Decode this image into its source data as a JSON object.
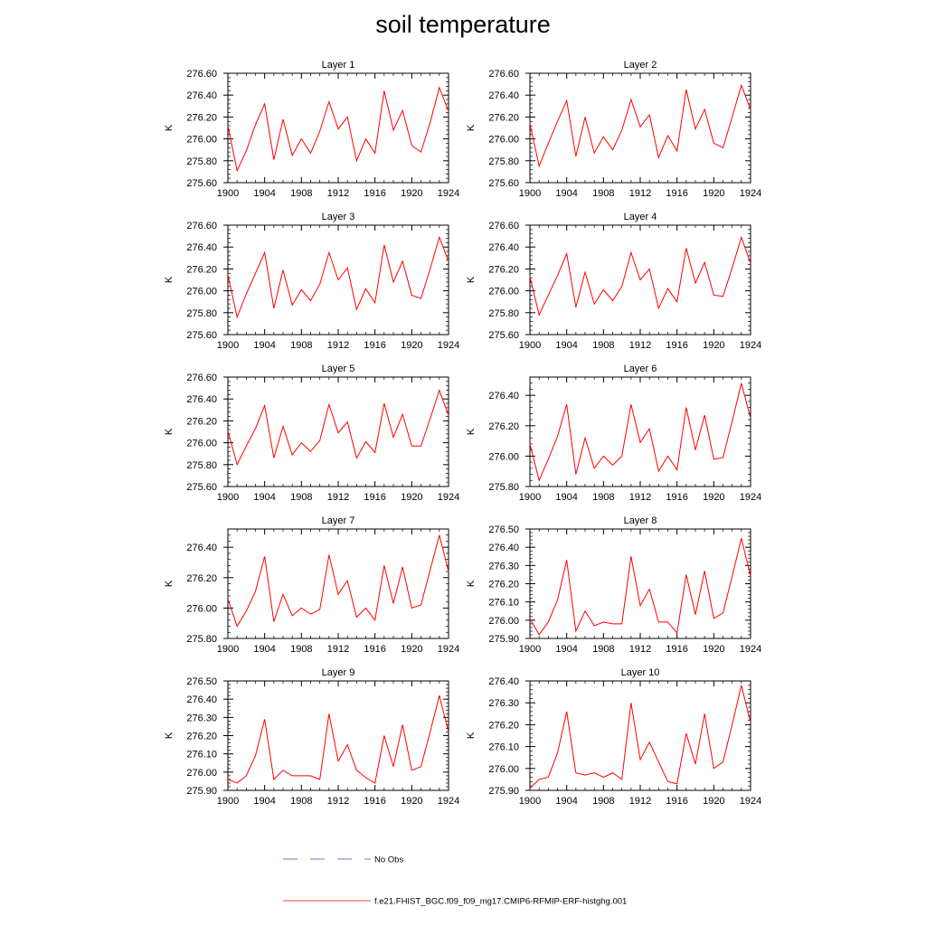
{
  "title": "soil temperature",
  "legend": [
    {
      "label": "No Obs",
      "style": "dashed",
      "color": "#4a4aa8"
    },
    {
      "label": "f.e21.FHIST_BGC.f09_f09_mg17.CMIP6-RFMIP-ERF-histghg.001",
      "style": "solid",
      "color": "#ff0000"
    }
  ],
  "chart_data": [
    {
      "type": "line",
      "title": "Layer 1",
      "xlabel": "",
      "ylabel": "K",
      "xlim": [
        1900,
        1924
      ],
      "ylim": [
        275.6,
        276.6
      ],
      "xticks": [
        1900,
        1904,
        1908,
        1912,
        1916,
        1920,
        1924
      ],
      "yticks": [
        275.6,
        275.8,
        276.0,
        276.2,
        276.4,
        276.6
      ],
      "ydecimals": 2,
      "series": [
        {
          "name": "f.e21.FHIST_BGC.f09_f09_mg17.CMIP6-RFMIP-ERF-histghg.001",
          "color": "#ff0000",
          "x": [
            1900,
            1901,
            1902,
            1903,
            1904,
            1905,
            1906,
            1907,
            1908,
            1909,
            1910,
            1911,
            1912,
            1913,
            1914,
            1915,
            1916,
            1917,
            1918,
            1919,
            1920,
            1921,
            1922,
            1923,
            1924
          ],
          "y": [
            276.12,
            275.71,
            275.89,
            276.13,
            276.32,
            275.81,
            276.18,
            275.85,
            276.0,
            275.87,
            276.07,
            276.34,
            276.09,
            276.2,
            275.8,
            276.0,
            275.87,
            276.44,
            276.08,
            276.26,
            275.94,
            275.88,
            276.15,
            276.47,
            276.25
          ]
        }
      ]
    },
    {
      "type": "line",
      "title": "Layer 2",
      "xlabel": "",
      "ylabel": "K",
      "xlim": [
        1900,
        1924
      ],
      "ylim": [
        275.6,
        276.6
      ],
      "xticks": [
        1900,
        1904,
        1908,
        1912,
        1916,
        1920,
        1924
      ],
      "yticks": [
        275.6,
        275.8,
        276.0,
        276.2,
        276.4,
        276.6
      ],
      "ydecimals": 2,
      "series": [
        {
          "name": "f.e21.FHIST_BGC.f09_f09_mg17.CMIP6-RFMIP-ERF-histghg.001",
          "color": "#ff0000",
          "x": [
            1900,
            1901,
            1902,
            1903,
            1904,
            1905,
            1906,
            1907,
            1908,
            1909,
            1910,
            1911,
            1912,
            1913,
            1914,
            1915,
            1916,
            1917,
            1918,
            1919,
            1920,
            1921,
            1922,
            1923,
            1924
          ],
          "y": [
            276.14,
            275.75,
            275.96,
            276.16,
            276.35,
            275.84,
            276.2,
            275.87,
            276.02,
            275.9,
            276.08,
            276.36,
            276.11,
            276.22,
            275.83,
            276.03,
            275.89,
            276.45,
            276.09,
            276.27,
            275.96,
            275.92,
            276.2,
            276.49,
            276.27
          ]
        }
      ]
    },
    {
      "type": "line",
      "title": "Layer 3",
      "xlabel": "",
      "ylabel": "K",
      "xlim": [
        1900,
        1924
      ],
      "ylim": [
        275.6,
        276.6
      ],
      "xticks": [
        1900,
        1904,
        1908,
        1912,
        1916,
        1920,
        1924
      ],
      "yticks": [
        275.6,
        275.8,
        276.0,
        276.2,
        276.4,
        276.6
      ],
      "ydecimals": 2,
      "series": [
        {
          "name": "f.e21.FHIST_BGC.f09_f09_mg17.CMIP6-RFMIP-ERF-histghg.001",
          "color": "#ff0000",
          "x": [
            1900,
            1901,
            1902,
            1903,
            1904,
            1905,
            1906,
            1907,
            1908,
            1909,
            1910,
            1911,
            1912,
            1913,
            1914,
            1915,
            1916,
            1917,
            1918,
            1919,
            1920,
            1921,
            1922,
            1923,
            1924
          ],
          "y": [
            276.15,
            275.76,
            275.97,
            276.16,
            276.35,
            275.84,
            276.19,
            275.87,
            276.01,
            275.91,
            276.06,
            276.35,
            276.1,
            276.21,
            275.83,
            276.02,
            275.89,
            276.42,
            276.08,
            276.27,
            275.96,
            275.93,
            276.2,
            276.49,
            276.27
          ]
        }
      ]
    },
    {
      "type": "line",
      "title": "Layer 4",
      "xlabel": "",
      "ylabel": "K",
      "xlim": [
        1900,
        1924
      ],
      "ylim": [
        275.6,
        276.6
      ],
      "xticks": [
        1900,
        1904,
        1908,
        1912,
        1916,
        1920,
        1924
      ],
      "yticks": [
        275.6,
        275.8,
        276.0,
        276.2,
        276.4,
        276.6
      ],
      "ydecimals": 2,
      "series": [
        {
          "name": "f.e21.FHIST_BGC.f09_f09_mg17.CMIP6-RFMIP-ERF-histghg.001",
          "color": "#ff0000",
          "x": [
            1900,
            1901,
            1902,
            1903,
            1904,
            1905,
            1906,
            1907,
            1908,
            1909,
            1910,
            1911,
            1912,
            1913,
            1914,
            1915,
            1916,
            1917,
            1918,
            1919,
            1920,
            1921,
            1922,
            1923,
            1924
          ],
          "y": [
            276.13,
            275.78,
            275.96,
            276.14,
            276.34,
            275.85,
            276.17,
            275.88,
            276.01,
            275.91,
            276.04,
            276.35,
            276.1,
            276.2,
            275.84,
            276.02,
            275.9,
            276.39,
            276.07,
            276.26,
            275.96,
            275.95,
            276.21,
            276.49,
            276.25
          ]
        }
      ]
    },
    {
      "type": "line",
      "title": "Layer 5",
      "xlabel": "",
      "ylabel": "K",
      "xlim": [
        1900,
        1924
      ],
      "ylim": [
        275.6,
        276.6
      ],
      "xticks": [
        1900,
        1904,
        1908,
        1912,
        1916,
        1920,
        1924
      ],
      "yticks": [
        275.6,
        275.8,
        276.0,
        276.2,
        276.4,
        276.6
      ],
      "ydecimals": 2,
      "series": [
        {
          "name": "f.e21.FHIST_BGC.f09_f09_mg17.CMIP6-RFMIP-ERF-histghg.001",
          "color": "#ff0000",
          "x": [
            1900,
            1901,
            1902,
            1903,
            1904,
            1905,
            1906,
            1907,
            1908,
            1909,
            1910,
            1911,
            1912,
            1913,
            1914,
            1915,
            1916,
            1917,
            1918,
            1919,
            1920,
            1921,
            1922,
            1923,
            1924
          ],
          "y": [
            276.11,
            275.8,
            275.97,
            276.13,
            276.34,
            275.86,
            276.15,
            275.89,
            276.0,
            275.92,
            276.02,
            276.35,
            276.09,
            276.19,
            275.86,
            276.01,
            275.91,
            276.36,
            276.05,
            276.26,
            275.97,
            275.97,
            276.22,
            276.48,
            276.25
          ]
        }
      ]
    },
    {
      "type": "line",
      "title": "Layer 6",
      "xlabel": "",
      "ylabel": "K",
      "xlim": [
        1900,
        1924
      ],
      "ylim": [
        275.8,
        276.52
      ],
      "xticks": [
        1900,
        1904,
        1908,
        1912,
        1916,
        1920,
        1924
      ],
      "yticks": [
        275.8,
        276.0,
        276.2,
        276.4
      ],
      "ydecimals": 2,
      "series": [
        {
          "name": "f.e21.FHIST_BGC.f09_f09_mg17.CMIP6-RFMIP-ERF-histghg.001",
          "color": "#ff0000",
          "x": [
            1900,
            1901,
            1902,
            1903,
            1904,
            1905,
            1906,
            1907,
            1908,
            1909,
            1910,
            1911,
            1912,
            1913,
            1914,
            1915,
            1916,
            1917,
            1918,
            1919,
            1920,
            1921,
            1922,
            1923,
            1924
          ],
          "y": [
            276.08,
            275.84,
            275.98,
            276.13,
            276.34,
            275.88,
            276.12,
            275.92,
            276.0,
            275.94,
            276.0,
            276.34,
            276.09,
            276.18,
            275.9,
            276.0,
            275.91,
            276.32,
            276.04,
            276.27,
            275.98,
            275.99,
            276.23,
            276.48,
            276.25
          ]
        }
      ]
    },
    {
      "type": "line",
      "title": "Layer 7",
      "xlabel": "",
      "ylabel": "K",
      "xlim": [
        1900,
        1924
      ],
      "ylim": [
        275.8,
        276.52
      ],
      "xticks": [
        1900,
        1904,
        1908,
        1912,
        1916,
        1920,
        1924
      ],
      "yticks": [
        275.8,
        276.0,
        276.2,
        276.4
      ],
      "ydecimals": 2,
      "series": [
        {
          "name": "f.e21.FHIST_BGC.f09_f09_mg17.CMIP6-RFMIP-ERF-histghg.001",
          "color": "#ff0000",
          "x": [
            1900,
            1901,
            1902,
            1903,
            1904,
            1905,
            1906,
            1907,
            1908,
            1909,
            1910,
            1911,
            1912,
            1913,
            1914,
            1915,
            1916,
            1917,
            1918,
            1919,
            1920,
            1921,
            1922,
            1923,
            1924
          ],
          "y": [
            276.06,
            275.88,
            275.98,
            276.11,
            276.34,
            275.91,
            276.09,
            275.95,
            276.0,
            275.96,
            275.99,
            276.35,
            276.09,
            276.18,
            275.94,
            276.0,
            275.92,
            276.28,
            276.03,
            276.27,
            276.0,
            276.02,
            276.25,
            276.48,
            276.24
          ]
        }
      ]
    },
    {
      "type": "line",
      "title": "Layer 8",
      "xlabel": "",
      "ylabel": "K",
      "xlim": [
        1900,
        1924
      ],
      "ylim": [
        275.9,
        276.5
      ],
      "xticks": [
        1900,
        1904,
        1908,
        1912,
        1916,
        1920,
        1924
      ],
      "yticks": [
        275.9,
        276.0,
        276.1,
        276.2,
        276.3,
        276.4,
        276.5
      ],
      "ydecimals": 2,
      "series": [
        {
          "name": "f.e21.FHIST_BGC.f09_f09_mg17.CMIP6-RFMIP-ERF-histghg.001",
          "color": "#ff0000",
          "x": [
            1900,
            1901,
            1902,
            1903,
            1904,
            1905,
            1906,
            1907,
            1908,
            1909,
            1910,
            1911,
            1912,
            1913,
            1914,
            1915,
            1916,
            1917,
            1918,
            1919,
            1920,
            1921,
            1922,
            1923,
            1924
          ],
          "y": [
            276.01,
            275.92,
            275.99,
            276.11,
            276.33,
            275.94,
            276.05,
            275.97,
            275.99,
            275.98,
            275.98,
            276.35,
            276.08,
            276.17,
            275.99,
            275.99,
            275.93,
            276.25,
            276.03,
            276.27,
            276.01,
            276.04,
            276.24,
            276.45,
            276.24
          ]
        }
      ]
    },
    {
      "type": "line",
      "title": "Layer 9",
      "xlabel": "",
      "ylabel": "K",
      "xlim": [
        1900,
        1924
      ],
      "ylim": [
        275.9,
        276.5
      ],
      "xticks": [
        1900,
        1904,
        1908,
        1912,
        1916,
        1920,
        1924
      ],
      "yticks": [
        275.9,
        276.0,
        276.1,
        276.2,
        276.3,
        276.4,
        276.5
      ],
      "ydecimals": 2,
      "series": [
        {
          "name": "f.e21.FHIST_BGC.f09_f09_mg17.CMIP6-RFMIP-ERF-histghg.001",
          "color": "#ff0000",
          "x": [
            1900,
            1901,
            1902,
            1903,
            1904,
            1905,
            1906,
            1907,
            1908,
            1909,
            1910,
            1911,
            1912,
            1913,
            1914,
            1915,
            1916,
            1917,
            1918,
            1919,
            1920,
            1921,
            1922,
            1923,
            1924
          ],
          "y": [
            275.96,
            275.94,
            275.98,
            276.09,
            276.29,
            275.96,
            276.01,
            275.98,
            275.98,
            275.98,
            275.96,
            276.32,
            276.06,
            276.15,
            276.01,
            275.97,
            275.94,
            276.2,
            276.03,
            276.26,
            276.01,
            276.03,
            276.22,
            276.42,
            276.22
          ]
        }
      ]
    },
    {
      "type": "line",
      "title": "Layer 10",
      "xlabel": "",
      "ylabel": "K",
      "xlim": [
        1900,
        1924
      ],
      "ylim": [
        275.9,
        276.4
      ],
      "xticks": [
        1900,
        1904,
        1908,
        1912,
        1916,
        1920,
        1924
      ],
      "yticks": [
        275.9,
        276.0,
        276.1,
        276.2,
        276.3,
        276.4
      ],
      "ydecimals": 2,
      "series": [
        {
          "name": "f.e21.FHIST_BGC.f09_f09_mg17.CMIP6-RFMIP-ERF-histghg.001",
          "color": "#ff0000",
          "x": [
            1900,
            1901,
            1902,
            1903,
            1904,
            1905,
            1906,
            1907,
            1908,
            1909,
            1910,
            1911,
            1912,
            1913,
            1914,
            1915,
            1916,
            1917,
            1918,
            1919,
            1920,
            1921,
            1922,
            1923,
            1924
          ],
          "y": [
            275.91,
            275.95,
            275.96,
            276.07,
            276.26,
            275.98,
            275.97,
            275.98,
            275.96,
            275.98,
            275.95,
            276.3,
            276.04,
            276.12,
            276.03,
            275.94,
            275.93,
            276.16,
            276.02,
            276.25,
            276.0,
            276.03,
            276.2,
            276.38,
            276.21
          ]
        }
      ]
    }
  ]
}
